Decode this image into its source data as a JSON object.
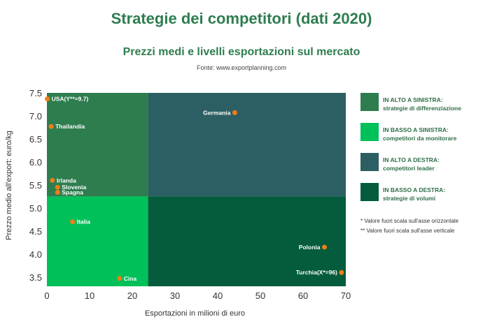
{
  "title": "Strategie dei competitori (dati 2020)",
  "subtitle": "Prezzi medi e livelli esportazioni sul mercato",
  "source": "Fonte: www.exportplanning.com",
  "legend": [
    {
      "line1": "IN ALTO A SINISTRA:",
      "line2": "strategie di differenziazione",
      "color": "#2e7d4f"
    },
    {
      "line1": "IN BASSO A SINISTRA:",
      "line2": "competitori da monitorare",
      "color": "#00c05a"
    },
    {
      "line1": "IN ALTO A DESTRA:",
      "line2": "competitori leader",
      "color": "#2c5f63"
    },
    {
      "line1": "IN BASSO A DESTRA:",
      "line2": "strategie di volumi",
      "color": "#045c3c"
    }
  ],
  "notes": [
    "* Valore fuori scala sull'asse orizzontale",
    "** Valore fuori scala sull'asse verticale"
  ],
  "colors": {
    "point": "#f07d16",
    "axis_text": "#333333"
  },
  "chart_data": {
    "type": "scatter",
    "title": "Strategie dei competitori (dati 2020)",
    "subtitle": "Prezzi medi e livelli esportazioni sul mercato",
    "xlabel": "Esportazioni in milioni di euro",
    "ylabel": "Prezzo medio all'export: euro/kg",
    "xlim": [
      0,
      70
    ],
    "ylim": [
      3.3,
      7.5
    ],
    "xticks": [
      0,
      10,
      20,
      30,
      40,
      50,
      60,
      70
    ],
    "yticks": [
      3.5,
      4.0,
      4.5,
      5.0,
      5.5,
      6.0,
      6.5,
      7.0,
      7.5
    ],
    "x_split": 23.7,
    "y_split": 5.25,
    "quadrant_colors": {
      "top_left": "#2e7d4f",
      "bottom_left": "#00c05a",
      "top_right": "#2c5f63",
      "bottom_right": "#045c3c"
    },
    "points": [
      {
        "label": "USA(Y**=9.7)",
        "x": 0.1,
        "y": 7.37
      },
      {
        "label": "Thailandia",
        "x": 1.0,
        "y": 6.77
      },
      {
        "label": "Germania",
        "x": 44.0,
        "y": 7.07
      },
      {
        "label": "Irlanda",
        "x": 1.3,
        "y": 5.6
      },
      {
        "label": "Slovenia",
        "x": 2.5,
        "y": 5.45
      },
      {
        "label": "Spagna",
        "x": 2.5,
        "y": 5.34
      },
      {
        "label": "Italia",
        "x": 6.0,
        "y": 4.7
      },
      {
        "label": "Polonia",
        "x": 65.0,
        "y": 4.15
      },
      {
        "label": "Cina",
        "x": 17.0,
        "y": 3.47
      },
      {
        "label": "Turchia(X*=96)",
        "x": 69.0,
        "y": 3.6
      }
    ]
  }
}
